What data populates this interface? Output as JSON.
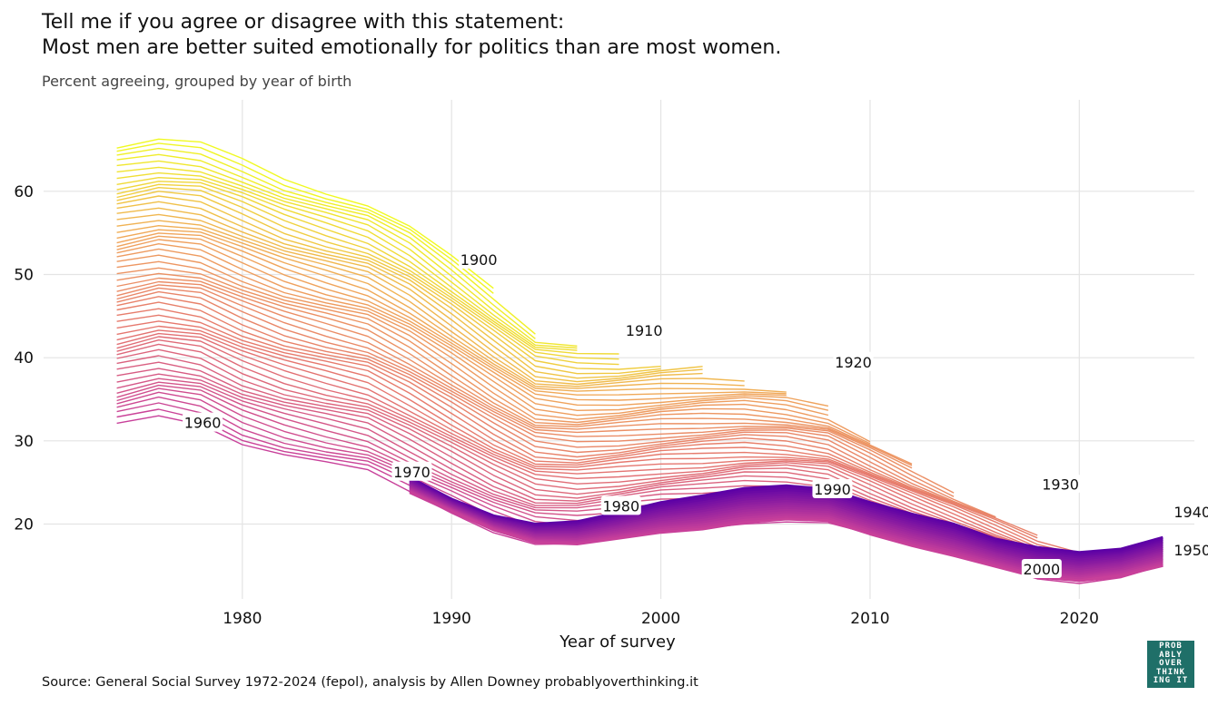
{
  "title_line1": "Tell me if you agree or disagree with this statement:",
  "title_line2": "Most men are better suited emotionally for politics than are most women.",
  "subtitle": "Percent agreeing, grouped by year of birth",
  "source": "Source: General Social Survey 1972-2024 (fepol), analysis by Allen Downey probablyoverthinking.it",
  "logo_lines": [
    "PROB",
    "ABLY",
    "OVER",
    "THINK",
    "ING IT"
  ],
  "chart_data": {
    "type": "line",
    "xlabel": "Year of survey",
    "ylabel": "",
    "xlim": [
      1970.5,
      2025.5
    ],
    "ylim": [
      11,
      71
    ],
    "xticks": [
      1980,
      1990,
      2000,
      2010,
      2020
    ],
    "yticks": [
      20,
      30,
      40,
      50,
      60
    ],
    "grid": true,
    "legend": "none",
    "cohort_range": [
      1890,
      2004
    ],
    "cohort_labels": [
      {
        "cohort": 1900,
        "text": "1900",
        "x": 1991.3,
        "y": 51.8
      },
      {
        "cohort": 1910,
        "text": "1910",
        "x": 1999.2,
        "y": 43.3
      },
      {
        "cohort": 1920,
        "text": "1920",
        "x": 2009.2,
        "y": 39.5
      },
      {
        "cohort": 1930,
        "text": "1930",
        "x": 2019.1,
        "y": 24.8
      },
      {
        "cohort": 1940,
        "text": "1940",
        "x": 2025.4,
        "y": 21.5
      },
      {
        "cohort": 1950,
        "text": "1950",
        "x": 2025.4,
        "y": 16.9
      },
      {
        "cohort": 1960,
        "text": "1960",
        "x": 1978.1,
        "y": 32.2
      },
      {
        "cohort": 1970,
        "text": "1970",
        "x": 1988.1,
        "y": 26.3
      },
      {
        "cohort": 1980,
        "text": "1980",
        "x": 1998.1,
        "y": 22.2
      },
      {
        "cohort": 1990,
        "text": "1990",
        "x": 2008.2,
        "y": 24.2
      },
      {
        "cohort": 2000,
        "text": "2000",
        "x": 2018.2,
        "y": 14.6
      }
    ],
    "series_profiles": {
      "x": [
        1974,
        1976,
        1978,
        1980,
        1982,
        1984,
        1986,
        1988,
        1990,
        1992,
        1994,
        1996,
        1998,
        2000,
        2002,
        2004,
        2006,
        2008,
        2010,
        2012,
        2014,
        2016,
        2018,
        2020,
        2022,
        2024
      ],
      "top": [
        65.2,
        66.0,
        65.6,
        63.8,
        61.6,
        60.0,
        58.5,
        55.8,
        52.0,
        48.0,
        44.0,
        43.3,
        43.3,
        43.6,
        43.8,
        43.5,
        42.6,
        41.2,
        38.0,
        34.5,
        31.2,
        28.0,
        24.8,
        22.6,
        23.2,
        24.8
      ],
      "bottom": [
        32.0,
        33.2,
        32.3,
        29.8,
        28.3,
        27.2,
        26.2,
        23.8,
        21.5,
        19.3,
        17.8,
        17.6,
        18.3,
        19.0,
        19.4,
        20.2,
        20.6,
        20.4,
        18.8,
        17.4,
        16.2,
        14.9,
        13.6,
        13.2,
        13.8,
        15.0
      ],
      "purple_top": [
        null,
        null,
        null,
        null,
        null,
        null,
        null,
        25.6,
        23.0,
        21.0,
        20.0,
        20.3,
        21.4,
        22.6,
        23.4,
        24.3,
        24.6,
        24.2,
        22.6,
        21.2,
        20.0,
        18.2,
        17.2,
        16.6,
        17.0,
        18.4
      ]
    },
    "colors": {
      "yellow": "#f0f921",
      "orange": "#f0a55c",
      "salmon": "#e5766f",
      "magenta": "#c8409a",
      "purple": "#5c01a6"
    }
  }
}
